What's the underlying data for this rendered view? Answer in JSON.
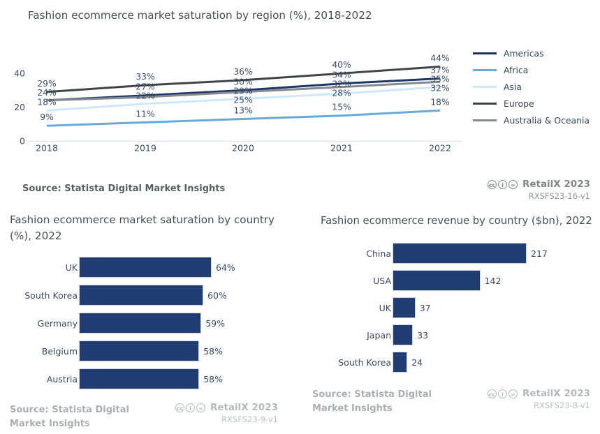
{
  "colors": {
    "axis_text": "#3a4d68",
    "data_label": "#3a4d68",
    "title_text": "#474e57",
    "baseline_grid": "#dfe8f2",
    "bar_fill": "#203d73"
  },
  "license_icons": [
    {
      "name": "cc-icon",
      "glyph": "cc"
    },
    {
      "name": "by-icon",
      "glyph": "i"
    },
    {
      "name": "nd-icon",
      "glyph": "="
    }
  ],
  "sections": {
    "region": {
      "source": "Source: Statista Digital Market Insights",
      "brand": "RetailX 2023",
      "code": "RXSFS23-16-v1"
    },
    "country_saturation": {
      "source": "Source: Statista Digital Market Insights",
      "brand": "RetailX 2023",
      "code": "RXSFS23-9-v1"
    },
    "country_revenue": {
      "source": "Source: Statista Digital Market Insights",
      "brand": "RetailX 2023",
      "code": "RXSFS23-8-v1"
    }
  },
  "chart_data": [
    {
      "type": "line",
      "title": "Fashion ecommerce market saturation by region (%), 2018-2022",
      "x": [
        2018,
        2019,
        2020,
        2021,
        2022
      ],
      "series": [
        {
          "name": "Americas",
          "color": "#1c3766",
          "values": [
            24,
            27,
            30,
            34,
            37
          ],
          "labels": [
            "24%",
            "27%",
            "30%",
            "34%",
            "37%"
          ]
        },
        {
          "name": "Africa",
          "color": "#67a9da",
          "values": [
            9,
            11,
            13,
            15,
            18
          ],
          "labels": [
            "9%",
            "11%",
            "13%",
            "15%",
            "18%"
          ]
        },
        {
          "name": "Asia",
          "color": "#cce9fa",
          "values": [
            18,
            22,
            25,
            28,
            32
          ],
          "labels": [
            "18%",
            "22%",
            "25%",
            "28%",
            "32%"
          ]
        },
        {
          "name": "Europe",
          "color": "#414447",
          "values": [
            29,
            33,
            36,
            40,
            44
          ],
          "labels": [
            "29%",
            "33%",
            "36%",
            "40%",
            "44%"
          ]
        },
        {
          "name": "Australia & Oceania",
          "color": "#848a90",
          "values": [
            24,
            26,
            29,
            32,
            35
          ],
          "labels": [
            "",
            "",
            "29%",
            "32%",
            "35%"
          ]
        }
      ],
      "yticks": [
        0,
        20,
        40
      ],
      "ylim": [
        0,
        48
      ],
      "legend_position": "right",
      "grid": "baseline-only"
    },
    {
      "type": "bar",
      "orientation": "horizontal",
      "title": "Fashion ecommerce market saturation by country (%), 2022",
      "categories": [
        "UK",
        "South Korea",
        "Germany",
        "Belgium",
        "Austria"
      ],
      "values": [
        64,
        60,
        59,
        58,
        58
      ],
      "value_labels": [
        "64%",
        "60%",
        "59%",
        "58%",
        "58%"
      ],
      "xlabel": "",
      "ylabel": "",
      "xlim": [
        0,
        64
      ]
    },
    {
      "type": "bar",
      "orientation": "horizontal",
      "title": "Fashion ecommerce revenue by country ($bn), 2022",
      "categories": [
        "China",
        "USA",
        "UK",
        "Japan",
        "South Korea"
      ],
      "values": [
        217,
        142,
        37,
        33,
        24
      ],
      "value_labels": [
        "217",
        "142",
        "37",
        "33",
        "24"
      ],
      "xlabel": "",
      "ylabel": "",
      "xlim": [
        0,
        217
      ]
    }
  ]
}
